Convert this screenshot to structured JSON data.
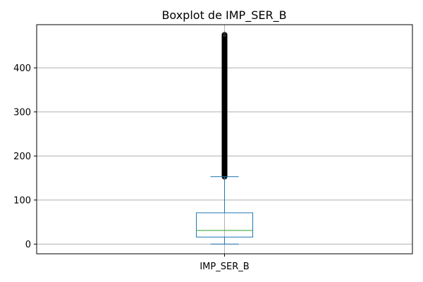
{
  "chart_data": {
    "type": "box",
    "title": "Boxplot de IMP_SER_B",
    "xlabel": "",
    "ylabel": "",
    "categories": [
      "IMP_SER_B"
    ],
    "ylim": [
      -22,
      498
    ],
    "yticks": [
      0,
      100,
      200,
      300,
      400
    ],
    "grid": true,
    "boxes": [
      {
        "category": "IMP_SER_B",
        "whisker_low": 0,
        "q1": 16,
        "median": 31,
        "q3": 71,
        "whisker_high": 153,
        "outliers_range": [
          153,
          475
        ]
      }
    ],
    "colors": {
      "box": "#1f77b4",
      "median": "#2ca02c",
      "grid": "#b0b0b0",
      "flier": "#000000"
    }
  }
}
